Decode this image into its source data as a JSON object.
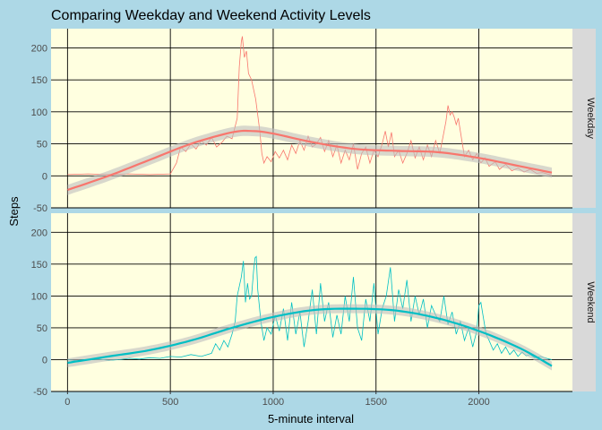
{
  "chart_data": {
    "type": "line",
    "title": "Comparing Weekday and Weekend Activity Levels",
    "xlabel": "5-minute interval",
    "ylabel": "Steps",
    "xlim": [
      -80,
      2455
    ],
    "ylim": [
      -50,
      230
    ],
    "x_ticks": [
      0,
      500,
      1000,
      1500,
      2000
    ],
    "y_ticks": [
      -50,
      0,
      50,
      100,
      150,
      200
    ],
    "grid": true,
    "colors": {
      "background": "#add8e6",
      "panel": "#ffffe0",
      "strip": "#d9d9d9",
      "weekday": "#f8766d",
      "weekend": "#00bfc4",
      "smooth_band": "#bebebe"
    },
    "panels": [
      {
        "strip_label": "Weekday",
        "color": "#f8766d",
        "raw": [
          [
            0,
            2
          ],
          [
            100,
            3
          ],
          [
            200,
            2
          ],
          [
            300,
            3
          ],
          [
            400,
            2
          ],
          [
            500,
            3
          ],
          [
            530,
            20
          ],
          [
            550,
            45
          ],
          [
            575,
            38
          ],
          [
            600,
            50
          ],
          [
            625,
            42
          ],
          [
            650,
            55
          ],
          [
            675,
            48
          ],
          [
            700,
            60
          ],
          [
            725,
            45
          ],
          [
            750,
            52
          ],
          [
            775,
            62
          ],
          [
            800,
            58
          ],
          [
            825,
            90
          ],
          [
            835,
            170
          ],
          [
            845,
            210
          ],
          [
            850,
            218
          ],
          [
            860,
            185
          ],
          [
            870,
            195
          ],
          [
            880,
            160
          ],
          [
            895,
            150
          ],
          [
            905,
            135
          ],
          [
            915,
            120
          ],
          [
            925,
            95
          ],
          [
            935,
            70
          ],
          [
            945,
            35
          ],
          [
            955,
            20
          ],
          [
            970,
            30
          ],
          [
            990,
            22
          ],
          [
            1010,
            38
          ],
          [
            1030,
            28
          ],
          [
            1050,
            40
          ],
          [
            1070,
            25
          ],
          [
            1090,
            48
          ],
          [
            1110,
            35
          ],
          [
            1130,
            55
          ],
          [
            1150,
            40
          ],
          [
            1170,
            62
          ],
          [
            1190,
            45
          ],
          [
            1210,
            50
          ],
          [
            1230,
            60
          ],
          [
            1250,
            38
          ],
          [
            1270,
            55
          ],
          [
            1290,
            30
          ],
          [
            1310,
            48
          ],
          [
            1330,
            20
          ],
          [
            1350,
            40
          ],
          [
            1370,
            25
          ],
          [
            1390,
            50
          ],
          [
            1410,
            10
          ],
          [
            1430,
            35
          ],
          [
            1450,
            45
          ],
          [
            1470,
            20
          ],
          [
            1490,
            40
          ],
          [
            1510,
            30
          ],
          [
            1530,
            50
          ],
          [
            1545,
            70
          ],
          [
            1560,
            45
          ],
          [
            1575,
            68
          ],
          [
            1590,
            30
          ],
          [
            1610,
            40
          ],
          [
            1630,
            20
          ],
          [
            1650,
            35
          ],
          [
            1670,
            55
          ],
          [
            1690,
            28
          ],
          [
            1710,
            45
          ],
          [
            1730,
            25
          ],
          [
            1750,
            48
          ],
          [
            1770,
            30
          ],
          [
            1790,
            55
          ],
          [
            1810,
            35
          ],
          [
            1825,
            60
          ],
          [
            1840,
            85
          ],
          [
            1850,
            110
          ],
          [
            1860,
            95
          ],
          [
            1870,
            100
          ],
          [
            1880,
            92
          ],
          [
            1890,
            80
          ],
          [
            1900,
            90
          ],
          [
            1915,
            60
          ],
          [
            1930,
            30
          ],
          [
            1950,
            40
          ],
          [
            1970,
            25
          ],
          [
            1990,
            35
          ],
          [
            2010,
            20
          ],
          [
            2030,
            28
          ],
          [
            2050,
            15
          ],
          [
            2080,
            22
          ],
          [
            2100,
            10
          ],
          [
            2130,
            18
          ],
          [
            2160,
            8
          ],
          [
            2190,
            12
          ],
          [
            2220,
            6
          ],
          [
            2250,
            10
          ],
          [
            2280,
            4
          ],
          [
            2310,
            5
          ],
          [
            2355,
            1
          ]
        ],
        "smooth": [
          [
            0,
            -22
          ],
          [
            200,
            0
          ],
          [
            400,
            25
          ],
          [
            600,
            50
          ],
          [
            800,
            68
          ],
          [
            900,
            70
          ],
          [
            1000,
            66
          ],
          [
            1200,
            52
          ],
          [
            1400,
            42
          ],
          [
            1600,
            39
          ],
          [
            1800,
            37
          ],
          [
            2000,
            28
          ],
          [
            2200,
            15
          ],
          [
            2355,
            5
          ]
        ],
        "band_half_width": 8
      },
      {
        "strip_label": "Weekend",
        "color": "#00bfc4",
        "raw": [
          [
            0,
            0
          ],
          [
            50,
            -2
          ],
          [
            100,
            0
          ],
          [
            150,
            1
          ],
          [
            200,
            -1
          ],
          [
            250,
            0
          ],
          [
            300,
            2
          ],
          [
            350,
            1
          ],
          [
            400,
            3
          ],
          [
            450,
            2
          ],
          [
            500,
            5
          ],
          [
            550,
            4
          ],
          [
            600,
            8
          ],
          [
            650,
            5
          ],
          [
            700,
            10
          ],
          [
            720,
            25
          ],
          [
            740,
            15
          ],
          [
            760,
            30
          ],
          [
            780,
            20
          ],
          [
            800,
            40
          ],
          [
            815,
            60
          ],
          [
            825,
            100
          ],
          [
            835,
            115
          ],
          [
            845,
            130
          ],
          [
            855,
            155
          ],
          [
            865,
            90
          ],
          [
            875,
            120
          ],
          [
            885,
            95
          ],
          [
            895,
            100
          ],
          [
            905,
            140
          ],
          [
            912,
            160
          ],
          [
            918,
            162
          ],
          [
            925,
            110
          ],
          [
            940,
            60
          ],
          [
            955,
            30
          ],
          [
            970,
            50
          ],
          [
            990,
            40
          ],
          [
            1010,
            70
          ],
          [
            1030,
            45
          ],
          [
            1050,
            80
          ],
          [
            1070,
            30
          ],
          [
            1090,
            90
          ],
          [
            1110,
            40
          ],
          [
            1130,
            75
          ],
          [
            1150,
            20
          ],
          [
            1170,
            60
          ],
          [
            1190,
            110
          ],
          [
            1210,
            40
          ],
          [
            1230,
            120
          ],
          [
            1250,
            60
          ],
          [
            1270,
            90
          ],
          [
            1290,
            35
          ],
          [
            1310,
            70
          ],
          [
            1330,
            40
          ],
          [
            1350,
            100
          ],
          [
            1370,
            60
          ],
          [
            1390,
            130
          ],
          [
            1410,
            50
          ],
          [
            1430,
            30
          ],
          [
            1450,
            95
          ],
          [
            1470,
            60
          ],
          [
            1490,
            120
          ],
          [
            1510,
            40
          ],
          [
            1530,
            80
          ],
          [
            1550,
            100
          ],
          [
            1570,
            145
          ],
          [
            1590,
            60
          ],
          [
            1610,
            110
          ],
          [
            1630,
            80
          ],
          [
            1650,
            125
          ],
          [
            1670,
            60
          ],
          [
            1690,
            100
          ],
          [
            1710,
            70
          ],
          [
            1730,
            95
          ],
          [
            1750,
            50
          ],
          [
            1770,
            85
          ],
          [
            1790,
            70
          ],
          [
            1810,
            60
          ],
          [
            1830,
            100
          ],
          [
            1850,
            55
          ],
          [
            1870,
            75
          ],
          [
            1890,
            40
          ],
          [
            1910,
            60
          ],
          [
            1930,
            30
          ],
          [
            1950,
            50
          ],
          [
            1970,
            20
          ],
          [
            1990,
            45
          ],
          [
            2000,
            85
          ],
          [
            2010,
            90
          ],
          [
            2020,
            70
          ],
          [
            2035,
            40
          ],
          [
            2050,
            30
          ],
          [
            2070,
            15
          ],
          [
            2090,
            25
          ],
          [
            2110,
            10
          ],
          [
            2130,
            20
          ],
          [
            2150,
            8
          ],
          [
            2170,
            15
          ],
          [
            2190,
            5
          ],
          [
            2210,
            12
          ],
          [
            2230,
            6
          ],
          [
            2250,
            8
          ],
          [
            2270,
            3
          ],
          [
            2300,
            5
          ],
          [
            2330,
            2
          ],
          [
            2355,
            0
          ]
        ],
        "smooth": [
          [
            0,
            -5
          ],
          [
            200,
            5
          ],
          [
            400,
            15
          ],
          [
            600,
            30
          ],
          [
            800,
            50
          ],
          [
            1000,
            67
          ],
          [
            1200,
            78
          ],
          [
            1400,
            80
          ],
          [
            1600,
            77
          ],
          [
            1800,
            65
          ],
          [
            2000,
            45
          ],
          [
            2200,
            18
          ],
          [
            2355,
            -10
          ]
        ],
        "band_half_width": 7
      }
    ]
  }
}
